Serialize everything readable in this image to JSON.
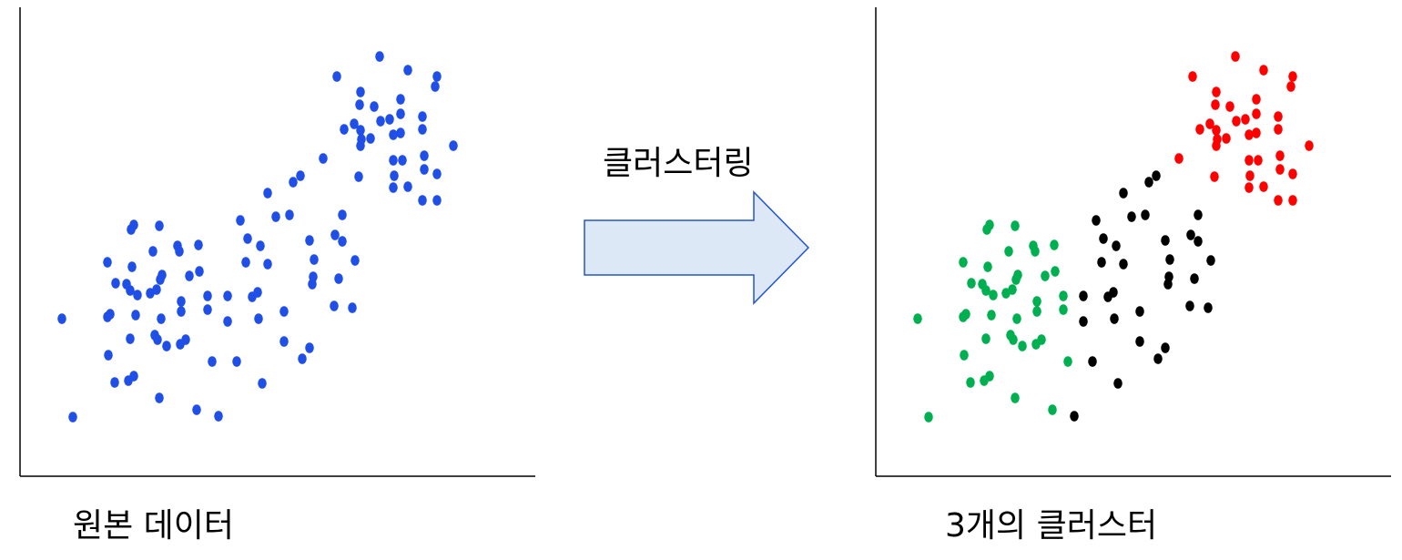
{
  "captions": {
    "original": "원본 데이터",
    "process": "클러스터링",
    "result": "3개의 클러스터"
  },
  "colors": {
    "original_points": "#1f4fe6",
    "cluster_red": "#ff0000",
    "cluster_black": "#000000",
    "cluster_green": "#00b050",
    "arrow_fill": "#dde8f7",
    "arrow_stroke": "#2255cc",
    "axis": "#000000"
  },
  "points": [
    [
      68,
      350,
      "g"
    ],
    [
      80,
      458,
      "g"
    ],
    [
      118,
      288,
      "g"
    ],
    [
      118,
      348,
      "g"
    ],
    [
      121,
      345,
      "g"
    ],
    [
      119,
      390,
      "g"
    ],
    [
      126,
      420,
      "g"
    ],
    [
      127,
      311,
      "g"
    ],
    [
      139,
      312,
      "g"
    ],
    [
      141,
      418,
      "g"
    ],
    [
      143,
      319,
      "g"
    ],
    [
      145,
      293,
      "g"
    ],
    [
      144,
      252,
      "g"
    ],
    [
      147,
      247,
      "g"
    ],
    [
      147,
      413,
      "g"
    ],
    [
      149,
      346,
      "g"
    ],
    [
      151,
      324,
      "g"
    ],
    [
      143,
      372,
      "g"
    ],
    [
      165,
      322,
      "g"
    ],
    [
      168,
      276,
      "g"
    ],
    [
      170,
      368,
      "g"
    ],
    [
      172,
      318,
      "g"
    ],
    [
      173,
      373,
      "g"
    ],
    [
      176,
      307,
      "g"
    ],
    [
      178,
      302,
      "g"
    ],
    [
      175,
      248,
      "g"
    ],
    [
      175,
      437,
      "g"
    ],
    [
      177,
      350,
      "g"
    ],
    [
      183,
      380,
      "g"
    ],
    [
      195,
      270,
      "g"
    ],
    [
      197,
      276,
      "g"
    ],
    [
      198,
      378,
      "g"
    ],
    [
      199,
      342,
      "g"
    ],
    [
      199,
      331,
      "g"
    ],
    [
      204,
      373,
      "g"
    ],
    [
      208,
      303,
      "g"
    ],
    [
      216,
      450,
      "g"
    ],
    [
      218,
      269,
      "g"
    ],
    [
      219,
      298,
      "g"
    ],
    [
      228,
      340,
      "g"
    ],
    [
      228,
      325,
      "g"
    ],
    [
      233,
      397,
      "g"
    ],
    [
      240,
      457,
      "k"
    ],
    [
      250,
      353,
      "k"
    ],
    [
      250,
      325,
      "k"
    ],
    [
      260,
      397,
      "k"
    ],
    [
      264,
      242,
      "k"
    ],
    [
      270,
      288,
      "k"
    ],
    [
      272,
      262,
      "k"
    ],
    [
      277,
      326,
      "k"
    ],
    [
      283,
      321,
      "k"
    ],
    [
      284,
      350,
      "k"
    ],
    [
      286,
      270,
      "k"
    ],
    [
      288,
      421,
      "k"
    ],
    [
      294,
      290,
      "k"
    ],
    [
      294,
      212,
      "k"
    ],
    [
      303,
      238,
      "k"
    ],
    [
      312,
      342,
      "k"
    ],
    [
      312,
      375,
      "k"
    ],
    [
      318,
      236,
      "k"
    ],
    [
      322,
      200,
      "k"
    ],
    [
      330,
      193,
      "k"
    ],
    [
      332,
      394,
      "k"
    ],
    [
      340,
      382,
      "k"
    ],
    [
      340,
      264,
      "k"
    ],
    [
      343,
      312,
      "k"
    ],
    [
      344,
      304,
      "k"
    ],
    [
      345,
      285,
      "k"
    ],
    [
      355,
      174,
      "r"
    ],
    [
      367,
      336,
      "k"
    ],
    [
      368,
      258,
      "k"
    ],
    [
      372,
      306,
      "k"
    ],
    [
      376,
      236,
      "k"
    ],
    [
      376,
      265,
      "k"
    ],
    [
      370,
      84,
      "r"
    ],
    [
      378,
      142,
      "r"
    ],
    [
      387,
      338,
      "k"
    ],
    [
      390,
      286,
      "k"
    ],
    [
      389,
      136,
      "r"
    ],
    [
      394,
      194,
      "r"
    ],
    [
      395,
      115,
      "r"
    ],
    [
      396,
      101,
      "r"
    ],
    [
      396,
      143,
      "r"
    ],
    [
      396,
      160,
      "r"
    ],
    [
      397,
      153,
      "r"
    ],
    [
      407,
      152,
      "r"
    ],
    [
      411,
      117,
      "r"
    ],
    [
      417,
      62,
      "r"
    ],
    [
      418,
      133,
      "r"
    ],
    [
      428,
      131,
      "r"
    ],
    [
      432,
      148,
      "r"
    ],
    [
      432,
      176,
      "r"
    ],
    [
      432,
      206,
      "r"
    ],
    [
      433,
      193,
      "r"
    ],
    [
      440,
      109,
      "r"
    ],
    [
      440,
      125,
      "r"
    ],
    [
      440,
      146,
      "r"
    ],
    [
      442,
      176,
      "r"
    ],
    [
      448,
      77,
      "r"
    ],
    [
      448,
      205,
      "r"
    ],
    [
      464,
      128,
      "r"
    ],
    [
      464,
      142,
      "r"
    ],
    [
      464,
      220,
      "r"
    ],
    [
      466,
      171,
      "r"
    ],
    [
      466,
      186,
      "r"
    ],
    [
      478,
      95,
      "r"
    ],
    [
      480,
      84,
      "r"
    ],
    [
      480,
      191,
      "r"
    ],
    [
      480,
      220,
      "r"
    ],
    [
      498,
      160,
      "r"
    ]
  ]
}
